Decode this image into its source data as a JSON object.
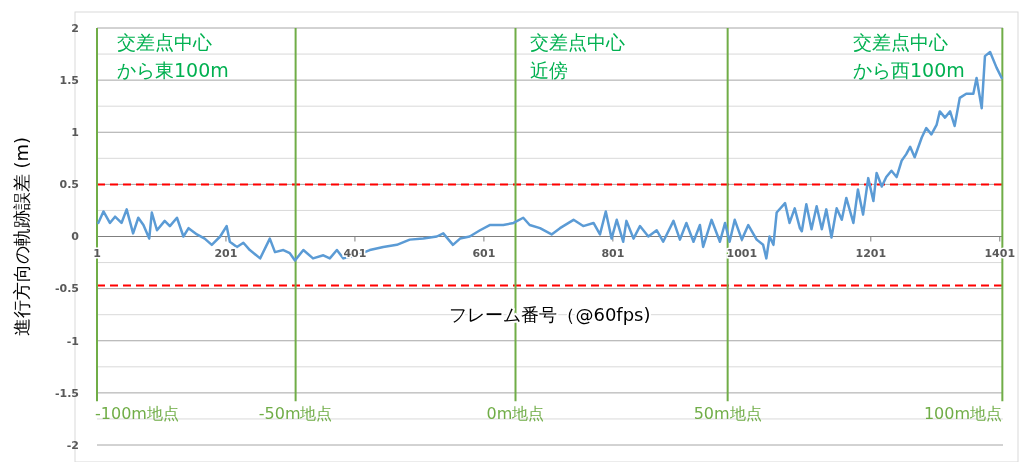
{
  "chart_data": {
    "type": "line",
    "xlabel": "フレーム番号（@60fps)",
    "ylabel": "進行方向の軌跡誤差 (m)",
    "x": [
      3,
      11,
      21,
      29,
      39,
      47,
      57,
      65,
      73,
      82,
      86,
      94,
      106,
      114,
      125,
      135,
      143,
      156,
      168,
      179,
      192,
      202,
      207,
      218,
      228,
      238,
      254,
      269,
      277,
      290,
      300,
      308,
      321,
      336,
      352,
      362,
      373,
      383,
      404,
      424,
      445,
      466,
      486,
      507,
      528,
      538,
      553,
      564,
      579,
      595,
      610,
      631,
      647,
      662,
      672,
      688,
      706,
      719,
      740,
      755,
      771,
      781,
      790,
      799,
      807,
      817,
      822,
      833,
      843,
      856,
      869,
      879,
      895,
      905,
      915,
      926,
      936,
      941,
      954,
      967,
      975,
      982,
      990,
      1001,
      1011,
      1024,
      1034,
      1039,
      1044,
      1050,
      1055,
      1068,
      1075,
      1083,
      1091,
      1094,
      1101,
      1109,
      1117,
      1125,
      1132,
      1140,
      1148,
      1156,
      1163,
      1174,
      1181,
      1189,
      1197,
      1205,
      1210,
      1218,
      1225,
      1233,
      1241,
      1249,
      1256,
      1262,
      1269,
      1280,
      1287,
      1295,
      1303,
      1308,
      1316,
      1324,
      1331,
      1339,
      1349,
      1360,
      1365,
      1373,
      1378,
      1386,
      1396,
      1404
    ],
    "series": [
      {
        "color": "#5b9bd5",
        "values": [
          0.13,
          0.24,
          0.13,
          0.19,
          0.13,
          0.26,
          0.03,
          0.18,
          0.11,
          -0.02,
          0.23,
          0.06,
          0.15,
          0.1,
          0.18,
          0,
          0.08,
          0.02,
          -0.02,
          -0.08,
          0,
          0.1,
          -0.05,
          -0.1,
          -0.06,
          -0.13,
          -0.21,
          -0.02,
          -0.15,
          -0.13,
          -0.16,
          -0.23,
          -0.13,
          -0.21,
          -0.18,
          -0.21,
          -0.13,
          -0.21,
          -0.18,
          -0.13,
          -0.1,
          -0.08,
          -0.03,
          -0.02,
          0,
          0.03,
          -0.08,
          -0.02,
          0,
          0.06,
          0.11,
          0.11,
          0.13,
          0.18,
          0.11,
          0.08,
          0.02,
          0.08,
          0.16,
          0.1,
          0.13,
          0.02,
          0.24,
          -0.02,
          0.16,
          -0.05,
          0.15,
          -0.02,
          0.1,
          0,
          0.06,
          -0.05,
          0.15,
          -0.03,
          0.13,
          -0.05,
          0.11,
          -0.1,
          0.16,
          -0.05,
          0.13,
          -0.05,
          0.16,
          -0.03,
          0.11,
          -0.03,
          -0.08,
          -0.21,
          0,
          -0.08,
          0.23,
          0.32,
          0.13,
          0.27,
          0.08,
          0.05,
          0.31,
          0.07,
          0.29,
          0.07,
          0.26,
          -0.01,
          0.27,
          0.16,
          0.37,
          0.13,
          0.45,
          0.21,
          0.56,
          0.34,
          0.61,
          0.48,
          0.57,
          0.63,
          0.57,
          0.73,
          0.79,
          0.86,
          0.76,
          0.95,
          1.04,
          0.98,
          1.07,
          1.2,
          1.14,
          1.2,
          1.06,
          1.33,
          1.37,
          1.37,
          1.52,
          1.23,
          1.73,
          1.77,
          1.62,
          1.52
        ]
      }
    ],
    "xlim": [
      1,
      1406
    ],
    "xticks": [
      1,
      201,
      401,
      601,
      801,
      1001,
      1201,
      1401
    ],
    "ylim": [
      -2,
      2
    ],
    "yticks": [
      -2,
      {
        "value": -1.75,
        "label": null
      },
      -1.5,
      {
        "value": -1.25,
        "label": null
      },
      -1,
      {
        "value": -0.75,
        "label": null
      },
      -0.5,
      {
        "value": -0.25,
        "label": null
      },
      0,
      {
        "value": 0.25,
        "label": null
      },
      0.5,
      {
        "value": 0.75,
        "label": null
      },
      1,
      {
        "value": 1.25,
        "label": null
      },
      1.5,
      {
        "value": 1.75,
        "label": null
      },
      2
    ],
    "grid": "y",
    "marker": "none",
    "line_style": "solid",
    "ref_lines": [
      {
        "axis": "y",
        "value": 0.5,
        "color": "#ff0000",
        "line_style": "dashed"
      },
      {
        "axis": "y",
        "value": -0.47,
        "color": "#ff0000",
        "line_style": "dashed"
      },
      {
        "axis": "x",
        "value": 1,
        "label": "-100m地点",
        "color": "#70ad47"
      },
      {
        "axis": "x",
        "value": 309,
        "label": "-50m地点",
        "color": "#70ad47"
      },
      {
        "axis": "x",
        "value": 650,
        "label": "0m地点",
        "color": "#70ad47"
      },
      {
        "axis": "x",
        "value": 979,
        "label": "50m地点",
        "color": "#70ad47"
      },
      {
        "axis": "x",
        "value": 1405,
        "label": "100m地点",
        "color": "#70ad47"
      }
    ],
    "annotations": [
      "交差点中心から東100m",
      "交差点中心近傍",
      "交差点中心から西100m"
    ]
  }
}
